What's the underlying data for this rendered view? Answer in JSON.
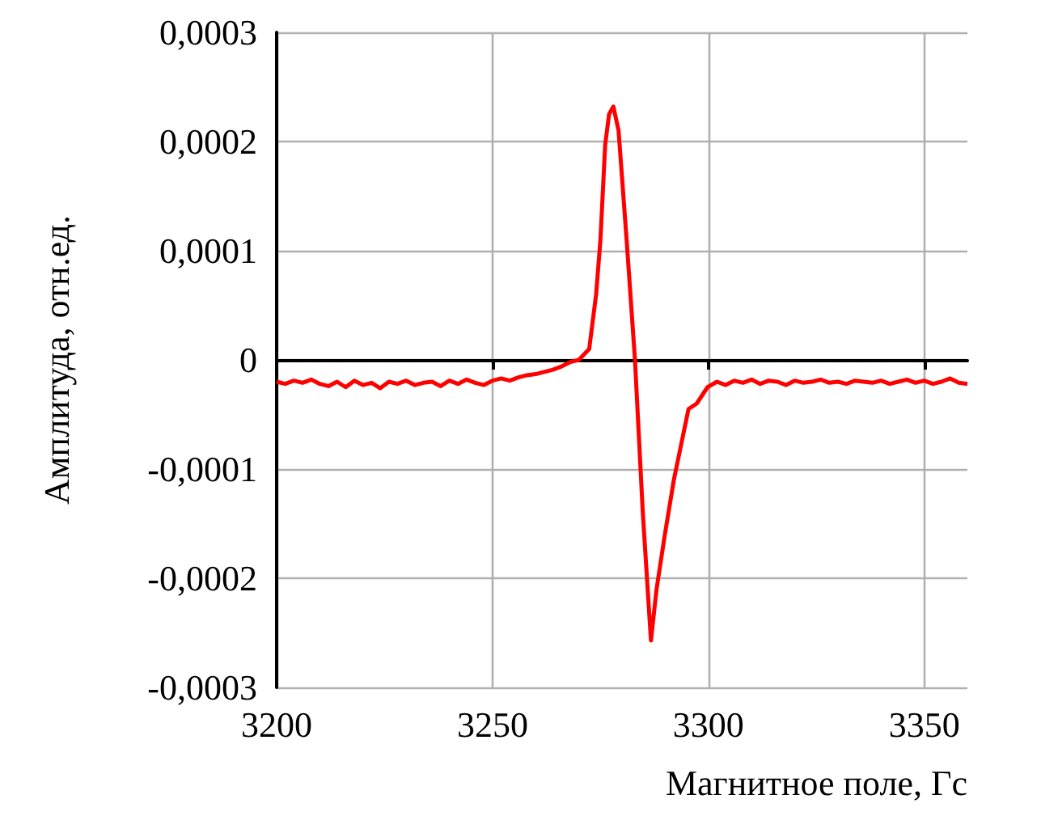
{
  "chart_data": {
    "type": "line",
    "xlabel": "Магнитное поле, Гс",
    "ylabel": "Амплитуда, отн.ед.",
    "xlim": [
      3200,
      3360
    ],
    "xticks": [
      3200,
      3250,
      3300,
      3350
    ],
    "ylim": [
      -0.0003,
      0.0003
    ],
    "yticks": [
      {
        "value": -0.0003,
        "label": "-0,0003"
      },
      {
        "value": -0.0002,
        "label": "-0,0002"
      },
      {
        "value": -0.0001,
        "label": "-0,0001"
      },
      {
        "value": 0,
        "label": "0"
      },
      {
        "value": 0.0001,
        "label": "0,0001"
      },
      {
        "value": 0.0002,
        "label": "0,0002"
      },
      {
        "value": 0.0003,
        "label": "0,0003"
      }
    ],
    "grid": true,
    "marker": "none",
    "line_style": "solid",
    "series": [
      {
        "color": "#ff0000",
        "x": [
          3200,
          3202,
          3204,
          3206,
          3208,
          3210,
          3212,
          3214,
          3216,
          3218,
          3220,
          3222,
          3224,
          3226,
          3228,
          3230,
          3232,
          3234,
          3236,
          3238,
          3240,
          3242,
          3244,
          3246,
          3248,
          3250,
          3252,
          3254,
          3256,
          3258,
          3260,
          3262,
          3264,
          3266,
          3268,
          3270,
          3272.4,
          3274,
          3275,
          3276.1,
          3277,
          3278,
          3279.2,
          3281.1,
          3283,
          3284.8,
          3286.7,
          3288,
          3289.8,
          3292,
          3295.4,
          3297.3,
          3299.8,
          3302,
          3304,
          3306,
          3308,
          3310,
          3312,
          3314,
          3316,
          3318,
          3320,
          3322,
          3324,
          3326,
          3328,
          3330,
          3332,
          3334,
          3336,
          3338,
          3340,
          3342,
          3344,
          3346,
          3348,
          3350,
          3352,
          3354,
          3356,
          3358,
          3360
        ],
        "values": [
          -2e-05,
          -2.2e-05,
          -1.9e-05,
          -2.1e-05,
          -1.8e-05,
          -2.2e-05,
          -2.4e-05,
          -2e-05,
          -2.5e-05,
          -1.9e-05,
          -2.3e-05,
          -2.1e-05,
          -2.6e-05,
          -2e-05,
          -2.2e-05,
          -1.9e-05,
          -2.3e-05,
          -2.1e-05,
          -2e-05,
          -2.4e-05,
          -1.9e-05,
          -2.2e-05,
          -1.8e-05,
          -2.1e-05,
          -2.3e-05,
          -1.9e-05,
          -1.7e-05,
          -1.9e-05,
          -1.6e-05,
          -1.4e-05,
          -1.3e-05,
          -1.1e-05,
          -9e-06,
          -6e-06,
          -2e-06,
          0.0,
          1e-05,
          6e-05,
          0.00011,
          0.000197,
          0.000225,
          0.000232,
          0.00021,
          0.000108,
          0.0,
          -0.000139,
          -0.000257,
          -0.00021,
          -0.000163,
          -0.00011,
          -4.5e-05,
          -4e-05,
          -2.5e-05,
          -2e-05,
          -2.3e-05,
          -1.9e-05,
          -2.1e-05,
          -1.8e-05,
          -2.2e-05,
          -1.9e-05,
          -2e-05,
          -2.3e-05,
          -1.9e-05,
          -2.1e-05,
          -2e-05,
          -1.8e-05,
          -2.1e-05,
          -2e-05,
          -2.2e-05,
          -1.9e-05,
          -2e-05,
          -2.1e-05,
          -1.9e-05,
          -2.2e-05,
          -2e-05,
          -1.8e-05,
          -2.1e-05,
          -1.9e-05,
          -2.2e-05,
          -2e-05,
          -1.7e-05,
          -2.1e-05,
          -2.2e-05
        ]
      }
    ]
  }
}
